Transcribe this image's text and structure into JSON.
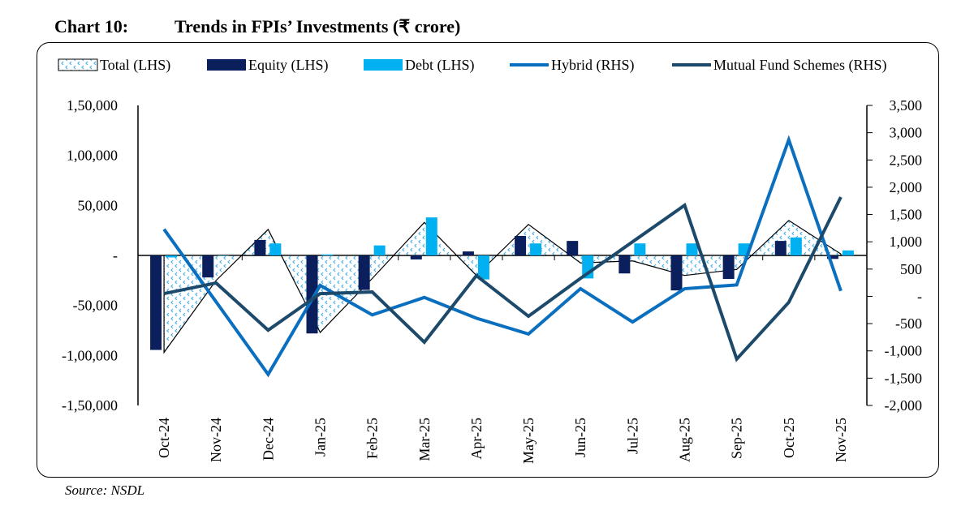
{
  "title": {
    "number": "Chart 10:",
    "text": "Trends in FPIs’ Investments (₹ crore)"
  },
  "source": "Source: NSDL",
  "chart_data": {
    "type": "bar",
    "categories": [
      "Oct-24",
      "Nov-24",
      "Dec-24",
      "Jan-25",
      "Feb-25",
      "Mar-25",
      "Apr-25",
      "May-25",
      "Jun-25",
      "Jul-25",
      "Aug-25",
      "Sep-25",
      "Oct-25",
      "Nov-25"
    ],
    "left_axis": {
      "ylim": [
        -150000,
        150000
      ],
      "ticks": [
        -150000,
        -100000,
        -50000,
        0,
        50000,
        100000,
        150000
      ],
      "tick_labels": [
        "-1,50,000",
        "-1,00,000",
        "-50,000",
        "-",
        "50,000",
        "1,00,000",
        "1,50,000"
      ]
    },
    "right_axis": {
      "ylim": [
        -2000,
        3500
      ],
      "ticks": [
        -2000,
        -1500,
        -1000,
        -500,
        0,
        500,
        1000,
        1500,
        2000,
        2500,
        3000,
        3500
      ],
      "tick_labels": [
        "-2,000",
        "-1,500",
        "-1,000",
        "-500",
        "-",
        "500",
        "1,000",
        "1,500",
        "2,000",
        "2,500",
        "3,000",
        "3,500"
      ]
    },
    "legend_position": "top",
    "grid": false,
    "series": [
      {
        "name": "Total (LHS)",
        "type": "area",
        "axis": "left",
        "color": "#5bb8e8",
        "values": [
          -97000,
          -25000,
          26000,
          -77000,
          -23000,
          33000,
          -20000,
          31000,
          -7500,
          -5500,
          -20000,
          -14000,
          35000,
          1500
        ]
      },
      {
        "name": "Equity (LHS)",
        "type": "bar",
        "axis": "left",
        "color": "#0a1f5c",
        "values": [
          -94500,
          -22000,
          15500,
          -78000,
          -34500,
          -4000,
          4000,
          19500,
          14500,
          -18000,
          -35000,
          -23500,
          14500,
          -3500
        ]
      },
      {
        "name": "Debt (LHS)",
        "type": "bar",
        "axis": "left",
        "color": "#00b0f0",
        "values": [
          -2000,
          0,
          12000,
          1000,
          10000,
          38000,
          -24000,
          12000,
          -23000,
          12000,
          12000,
          12000,
          18000,
          5000
        ]
      },
      {
        "name": "Hybrid (RHS)",
        "type": "line",
        "axis": "right",
        "color": "#0a6fbf",
        "values": [
          1230,
          -100,
          -1430,
          200,
          -340,
          -20,
          -400,
          -690,
          140,
          -470,
          140,
          210,
          2870,
          100
        ]
      },
      {
        "name": "Mutual Fund Schemes (RHS)",
        "type": "line",
        "axis": "right",
        "color": "#1d4a6b",
        "values": [
          50,
          245,
          -620,
          50,
          80,
          -840,
          380,
          -365,
          330,
          1000,
          1670,
          -1150,
          -110,
          1820
        ]
      }
    ]
  }
}
